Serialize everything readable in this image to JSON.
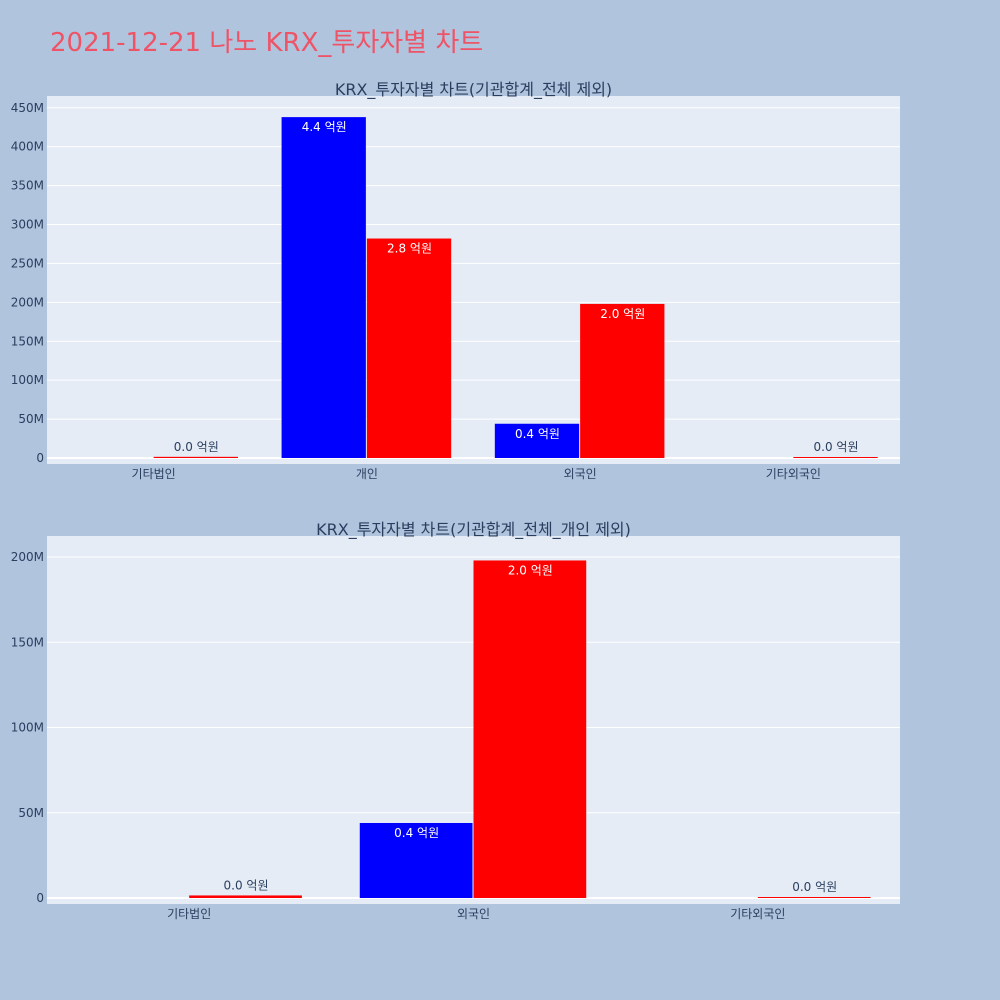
{
  "page": {
    "title": "2021-12-21 나노 KRX_투자자별 차트"
  },
  "colors": {
    "background": "#b0c4de",
    "plot_bg": "#e5ecf6",
    "series_a": "#0000ff",
    "series_b": "#ff0000",
    "title_color": "#ef5366"
  },
  "chart_data": [
    {
      "type": "bar",
      "title": "KRX_투자자별 차트(기관합계_전체 제외)",
      "categories": [
        "기타법인",
        "개인",
        "외국인",
        "기타외국인"
      ],
      "ylim": [
        0,
        460000000
      ],
      "yticks": [
        0,
        50000000,
        100000000,
        150000000,
        200000000,
        250000000,
        300000000,
        350000000,
        400000000,
        450000000
      ],
      "ytick_labels": [
        "0",
        "50M",
        "100M",
        "150M",
        "200M",
        "250M",
        "300M",
        "350M",
        "400M",
        "450M"
      ],
      "grid": true,
      "series": [
        {
          "color": "#0000ff",
          "values": [
            0,
            438000000,
            44000000,
            0
          ],
          "labels": [
            "",
            "4.4 억원",
            "0.4 억원",
            ""
          ]
        },
        {
          "color": "#ff0000",
          "values": [
            1500000,
            282000000,
            198000000,
            400000
          ],
          "labels": [
            "0.0 억원",
            "2.8 억원",
            "2.0 억원",
            "0.0 억원"
          ]
        }
      ]
    },
    {
      "type": "bar",
      "title": "KRX_투자자별 차트(기관합계_전체_개인 제외)",
      "categories": [
        "기타법인",
        "외국인",
        "기타외국인"
      ],
      "ylim": [
        0,
        210000000
      ],
      "yticks": [
        0,
        50000000,
        100000000,
        150000000,
        200000000
      ],
      "ytick_labels": [
        "0",
        "50M",
        "100M",
        "150M",
        "200M"
      ],
      "grid": true,
      "series": [
        {
          "color": "#0000ff",
          "values": [
            0,
            44000000,
            0
          ],
          "labels": [
            "",
            "0.4 억원",
            ""
          ]
        },
        {
          "color": "#ff0000",
          "values": [
            1500000,
            198000000,
            400000
          ],
          "labels": [
            "0.0 억원",
            "2.0 억원",
            "0.0 억원"
          ]
        }
      ]
    }
  ]
}
